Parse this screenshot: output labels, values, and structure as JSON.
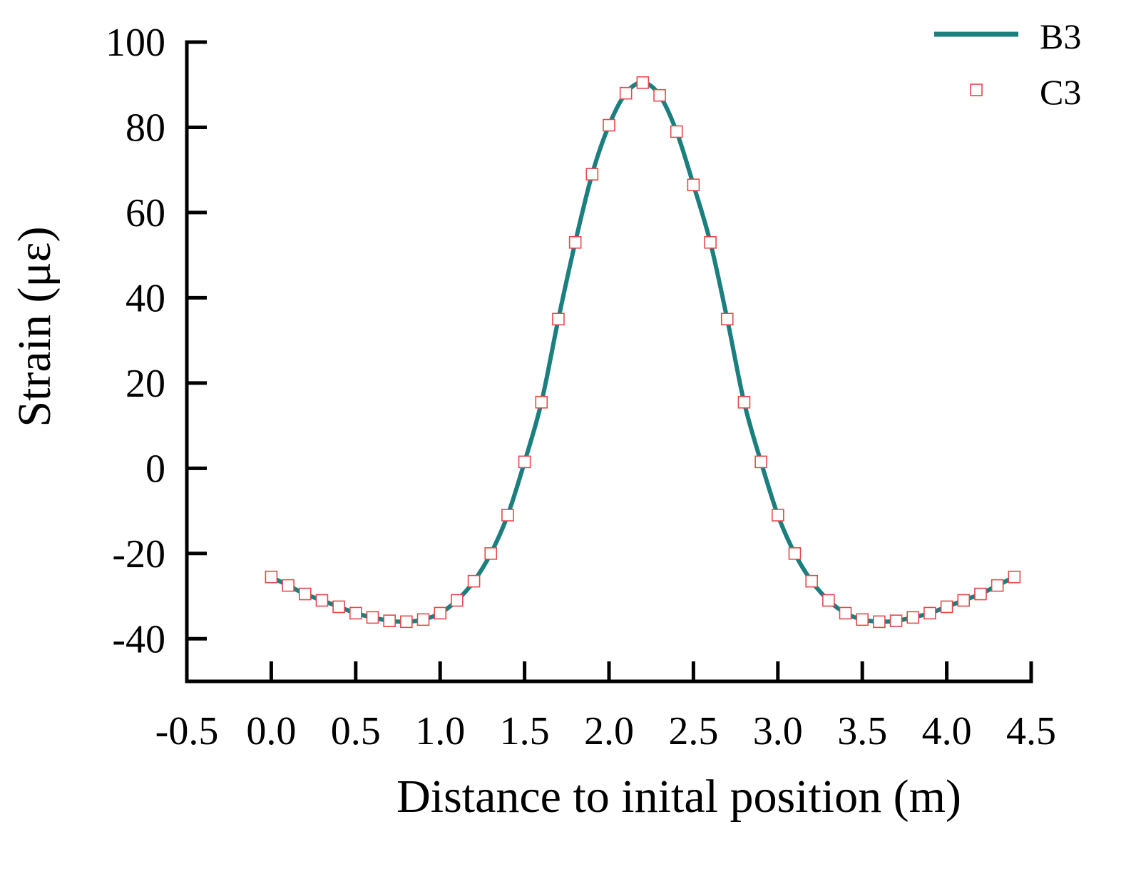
{
  "chart_data": {
    "type": "line",
    "xlabel": "Distance to inital position (m)",
    "ylabel": "Strain (με)",
    "xlim": [
      -0.5,
      4.5
    ],
    "ylim": [
      -50,
      100
    ],
    "xticks": [
      -0.5,
      0.0,
      0.5,
      1.0,
      1.5,
      2.0,
      2.5,
      3.0,
      3.5,
      4.0,
      4.5
    ],
    "xtick_labels": [
      "-0.5",
      "0.0",
      "0.5",
      "1.0",
      "1.5",
      "2.0",
      "2.5",
      "3.0",
      "3.5",
      "4.0",
      "4.5"
    ],
    "yticks": [
      -40,
      -20,
      0,
      20,
      40,
      60,
      80,
      100
    ],
    "ytick_labels": [
      "-40",
      "-20",
      "0",
      "20",
      "40",
      "60",
      "80",
      "100"
    ],
    "grid": false,
    "legend": "top-right",
    "series": [
      {
        "name": "B3",
        "style": "line",
        "color": "#1b7f7f",
        "x": [
          0.0,
          0.1,
          0.2,
          0.3,
          0.4,
          0.5,
          0.6,
          0.7,
          0.8,
          0.9,
          1.0,
          1.1,
          1.2,
          1.3,
          1.4,
          1.5,
          1.6,
          1.7,
          1.8,
          1.9,
          2.0,
          2.1,
          2.2,
          2.3,
          2.4,
          2.5,
          2.6,
          2.7,
          2.8,
          2.9,
          3.0,
          3.1,
          3.2,
          3.3,
          3.4,
          3.5,
          3.6,
          3.7,
          3.8,
          3.9,
          4.0,
          4.1,
          4.2,
          4.3,
          4.4
        ],
        "y": [
          -25.5,
          -27.5,
          -29.5,
          -31,
          -32.5,
          -34,
          -35,
          -35.8,
          -36,
          -35.5,
          -34,
          -31,
          -26.5,
          -20,
          -11,
          1.5,
          15.5,
          35,
          53,
          69,
          80.5,
          88,
          90.5,
          87.5,
          79,
          66.5,
          53,
          35,
          15.5,
          1.5,
          -11,
          -20,
          -26.5,
          -31,
          -34,
          -35.5,
          -36,
          -35.8,
          -35,
          -34,
          -32.5,
          -31,
          -29.5,
          -27.5,
          -25.5
        ]
      },
      {
        "name": "C3",
        "style": "marker",
        "color": "#e8474a",
        "x": [
          0.0,
          0.1,
          0.2,
          0.3,
          0.4,
          0.5,
          0.6,
          0.7,
          0.8,
          0.9,
          1.0,
          1.1,
          1.2,
          1.3,
          1.4,
          1.5,
          1.6,
          1.7,
          1.8,
          1.9,
          2.0,
          2.1,
          2.2,
          2.3,
          2.4,
          2.5,
          2.6,
          2.7,
          2.8,
          2.9,
          3.0,
          3.1,
          3.2,
          3.3,
          3.4,
          3.5,
          3.6,
          3.7,
          3.8,
          3.9,
          4.0,
          4.1,
          4.2,
          4.3,
          4.4
        ],
        "y": [
          -25.5,
          -27.5,
          -29.5,
          -31,
          -32.5,
          -34,
          -35,
          -35.8,
          -36,
          -35.5,
          -34,
          -31,
          -26.5,
          -20,
          -11,
          1.5,
          15.5,
          35,
          53,
          69,
          80.5,
          88,
          90.5,
          87.5,
          79,
          66.5,
          53,
          35,
          15.5,
          1.5,
          -11,
          -20,
          -26.5,
          -31,
          -34,
          -35.5,
          -36,
          -35.8,
          -35,
          -34,
          -32.5,
          -31,
          -29.5,
          -27.5,
          -25.5
        ]
      }
    ]
  }
}
